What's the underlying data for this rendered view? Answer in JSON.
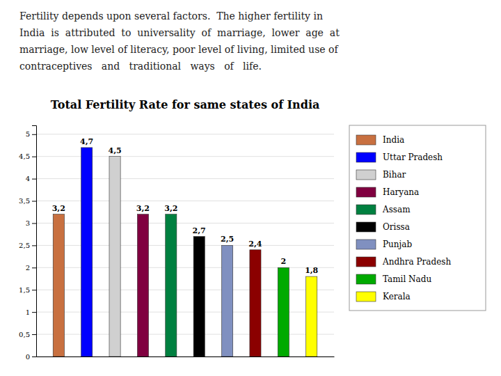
{
  "chart_data": {
    "type": "bar",
    "title": "Total Fertility Rate for same states of India",
    "annotations": [
      "Fertility depends upon several factors.  The higher fertility in",
      "India  is  attributed  to  universality  of  marriage,  lower  age  at",
      "marriage, low level of literacy, poor level of living, limited use of",
      "contraceptives   and   traditional   ways   of   life."
    ],
    "categories": [
      "India",
      "Uttar Pradesh",
      "Bihar",
      "Haryana",
      "Assam",
      "Orissa",
      "Punjab",
      "Andhra Pradesh",
      "Tamil Nadu",
      "Kerala"
    ],
    "values": [
      3.2,
      4.7,
      4.5,
      3.2,
      3.2,
      2.7,
      2.5,
      2.4,
      2.0,
      1.8
    ],
    "value_labels": [
      "3,2",
      "4,7",
      "4,5",
      "3,2",
      "3,2",
      "2,7",
      "2,5",
      "2,4",
      "2",
      "1,8"
    ],
    "data_labels": true,
    "colors": [
      "#C87040",
      "#0000FF",
      "#D0D0D0",
      "#800040",
      "#008040",
      "#000000",
      "#8090C0",
      "#8B0000",
      "#00AA00",
      "#FFFF00"
    ],
    "ylim": [
      0,
      5.2
    ],
    "yticks": [
      0,
      {
        "value": 0.5,
        "label": "0,5"
      },
      1,
      {
        "value": 1.5,
        "label": "1,5"
      },
      2,
      {
        "value": 2.5,
        "label": "2,5"
      },
      3,
      {
        "value": 3.5,
        "label": "3,5"
      },
      4,
      {
        "value": 4.5,
        "label": "4,5"
      },
      5
    ],
    "grid": true,
    "legend": "right",
    "tick_labels": "y"
  }
}
